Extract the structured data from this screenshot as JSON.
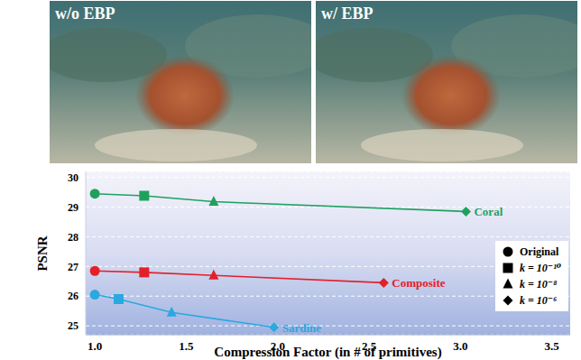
{
  "panels": [
    {
      "label": "w/o EBP"
    },
    {
      "label": "w/ EBP"
    }
  ],
  "chart_data": {
    "type": "line",
    "x_label": "Compression Factor (in # of primitives)",
    "y_label": "PSNR",
    "xlim": [
      0.95,
      3.6
    ],
    "xticks": [
      {
        "value": 1,
        "label": "1.0"
      },
      {
        "value": 1.5,
        "label": "1.5"
      },
      {
        "value": 2,
        "label": "2.0"
      },
      {
        "value": 2.5,
        "label": "2.5"
      },
      {
        "value": 3,
        "label": "3.0"
      },
      {
        "value": 3.5,
        "label": "3.5"
      }
    ],
    "ylim": [
      24.7,
      30.2
    ],
    "yticks": [
      25,
      26,
      27,
      28,
      29,
      30
    ],
    "grid": true,
    "legend": "lower right",
    "point_markers": [
      {
        "name": "Original",
        "marker": "circle"
      },
      {
        "name": "k = 10⁻¹⁰",
        "marker": "square"
      },
      {
        "name": "k = 10⁻⁸",
        "marker": "triangle"
      },
      {
        "name": "k = 10⁻⁶",
        "marker": "diamond"
      }
    ],
    "series": [
      {
        "name": "Coral",
        "color": "#1fa15e",
        "x": [
          1.0,
          1.27,
          1.65,
          3.03
        ],
        "values": [
          29.45,
          29.38,
          29.18,
          28.85
        ]
      },
      {
        "name": "Composite",
        "color": "#e3202a",
        "x": [
          1.0,
          1.27,
          1.65,
          2.58
        ],
        "values": [
          26.85,
          26.8,
          26.7,
          26.45
        ]
      },
      {
        "name": "Sardine",
        "color": "#2aa8e0",
        "x": [
          1.0,
          1.13,
          1.42,
          1.98
        ],
        "values": [
          26.05,
          25.9,
          25.45,
          24.95
        ]
      }
    ]
  }
}
